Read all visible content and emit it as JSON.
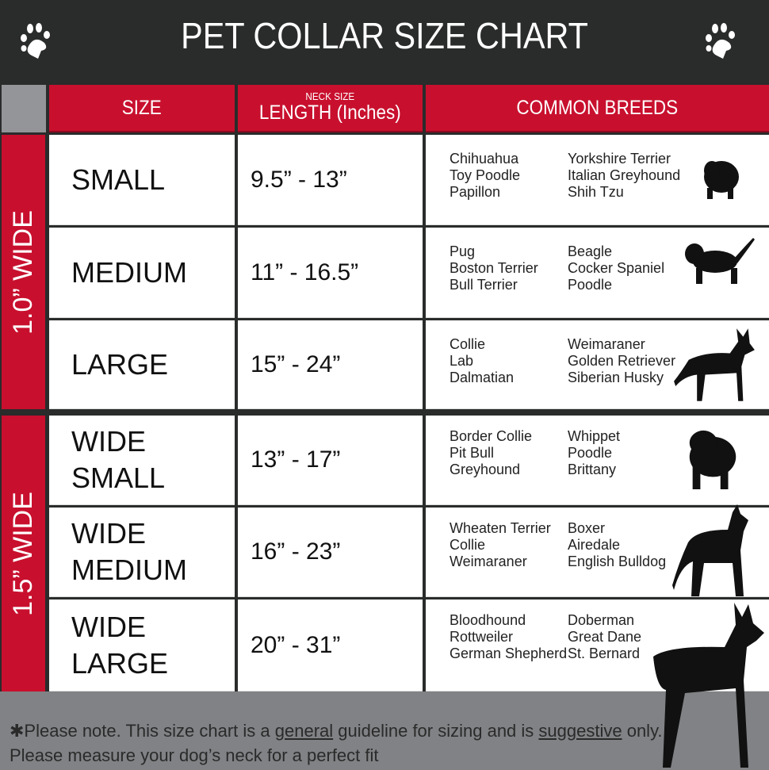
{
  "title": "PET COLLAR SIZE CHART",
  "headers": {
    "size": "SIZE",
    "neck_small": "NECK SIZE",
    "length": "LENGTH (Inches)",
    "breeds": "COMMON BREEDS"
  },
  "groups": [
    {
      "label": "1.0” WIDE"
    },
    {
      "label": "1.5” WIDE"
    }
  ],
  "rows": [
    {
      "size": "SMALL",
      "length": "9.5” - 13”",
      "breeds_a": [
        "Chihuahua",
        "Toy Poodle",
        "Papillon"
      ],
      "breeds_b": [
        "Yorkshire Terrier",
        "Italian Greyhound",
        "Shih Tzu"
      ]
    },
    {
      "size": "MEDIUM",
      "length": "11” - 16.5”",
      "breeds_a": [
        "Pug",
        "Boston Terrier",
        "Bull Terrier"
      ],
      "breeds_b": [
        "Beagle",
        "Cocker Spaniel",
        "Poodle"
      ]
    },
    {
      "size": "LARGE",
      "length": "15” - 24”",
      "breeds_a": [
        "Collie",
        "Lab",
        "Dalmatian"
      ],
      "breeds_b": [
        "Weimaraner",
        "Golden Retriever",
        "Siberian Husky"
      ]
    },
    {
      "size": "WIDE SMALL",
      "length": "13” - 17”",
      "breeds_a": [
        "Border Collie",
        "Pit Bull",
        "Greyhound"
      ],
      "breeds_b": [
        "Whippet",
        "Poodle",
        "Brittany"
      ]
    },
    {
      "size": "WIDE MEDIUM",
      "length": "16” - 23”",
      "breeds_a": [
        "Wheaten Terrier",
        "Collie",
        "Weimaraner"
      ],
      "breeds_b": [
        "Boxer",
        "Airedale",
        "English Bulldog"
      ]
    },
    {
      "size": "WIDE LARGE",
      "length": "20” - 31”",
      "breeds_a": [
        "Bloodhound",
        "Rottweiler",
        "German Shepherd"
      ],
      "breeds_b": [
        "Doberman",
        "Great Dane",
        "St. Bernard"
      ]
    }
  ],
  "footer": {
    "p1": "✱Please note. This size chart is a ",
    "u1": "general",
    "p2": " guideline for sizing and is ",
    "u2": "suggestive",
    "p3": " only.",
    "line2": "Please measure your dog’s neck for a perfect fit"
  },
  "colors": {
    "red": "#c8102e",
    "dark": "#2a2b2b",
    "gray": "#808285"
  },
  "icons": [
    "paw-icon",
    "dog-silhouette-icon"
  ]
}
